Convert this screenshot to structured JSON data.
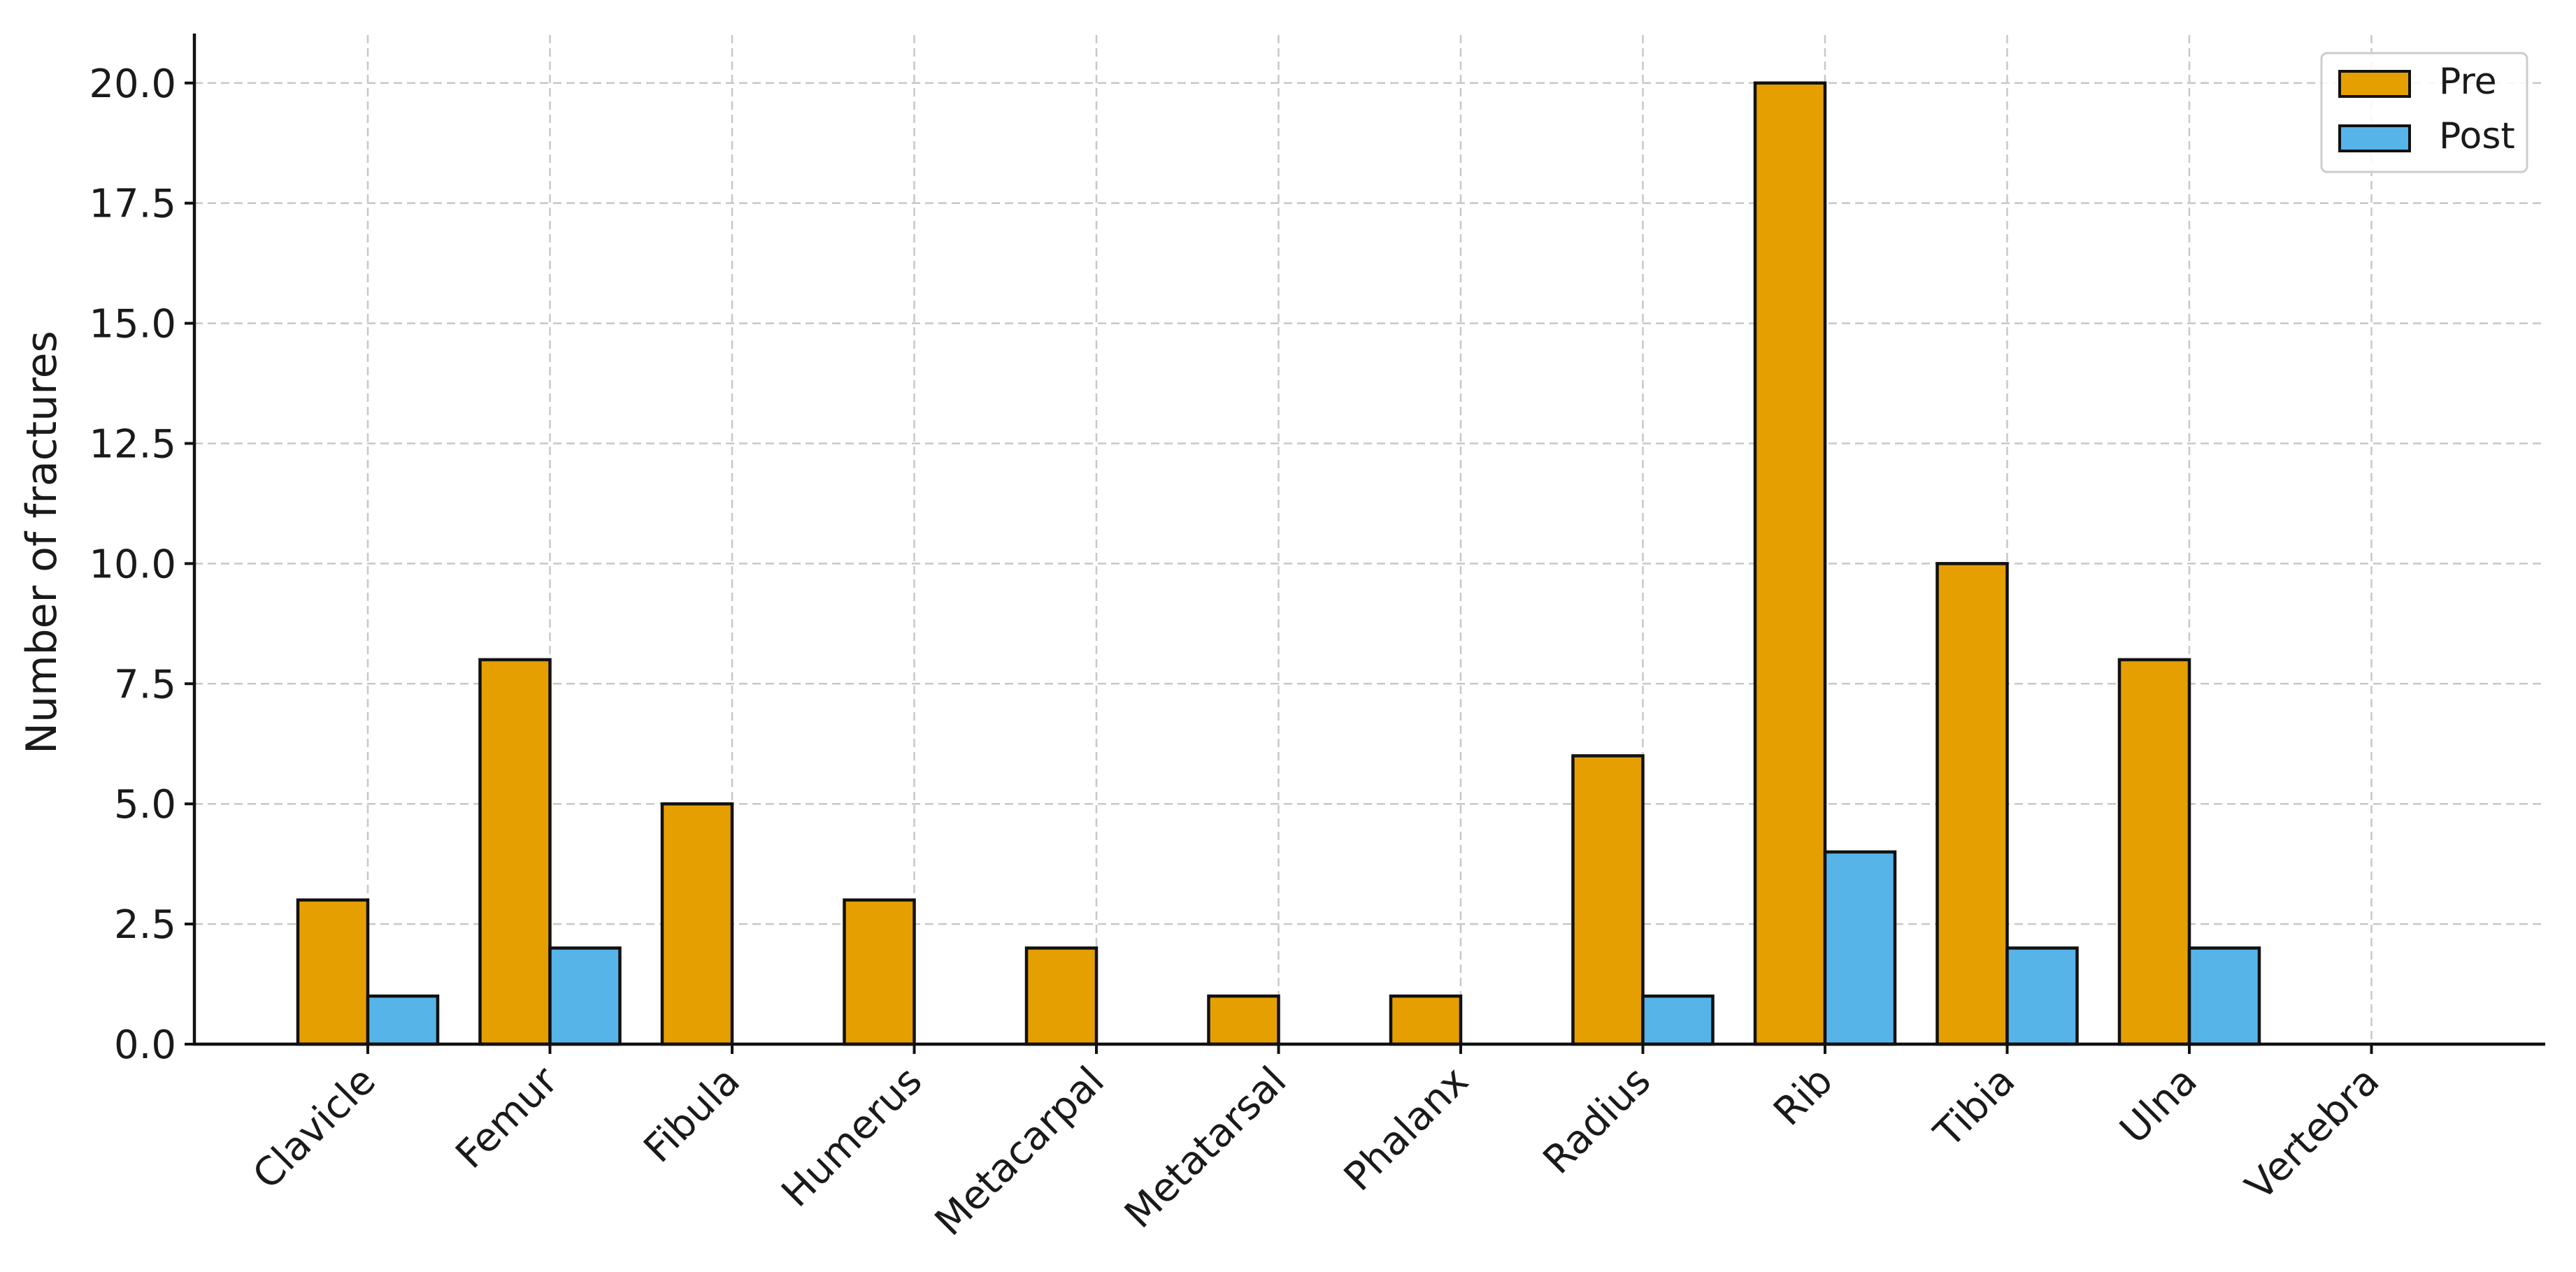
{
  "chart_data": {
    "type": "bar",
    "categories": [
      "Clavicle",
      "Femur",
      "Fibula",
      "Humerus",
      "Metacarpal",
      "Metatarsal",
      "Phalanx",
      "Radius",
      "Rib",
      "Tibia",
      "Ulna",
      "Vertebra"
    ],
    "series": [
      {
        "name": "Pre",
        "color": "#E69F00",
        "values": [
          3,
          8,
          5,
          3,
          2,
          1,
          1,
          6,
          20,
          10,
          8,
          0
        ]
      },
      {
        "name": "Post",
        "color": "#56B4E9",
        "values": [
          1,
          2,
          0,
          0,
          0,
          0,
          0,
          1,
          4,
          2,
          2,
          0
        ]
      }
    ],
    "xlabel": "",
    "ylabel": "Number of fractures",
    "ylim": [
      0,
      21
    ],
    "yticks": [
      "0.0",
      "2.5",
      "5.0",
      "7.5",
      "10.0",
      "12.5",
      "15.0",
      "17.5",
      "20.0"
    ],
    "grid": true,
    "legend_position": "top-right"
  }
}
